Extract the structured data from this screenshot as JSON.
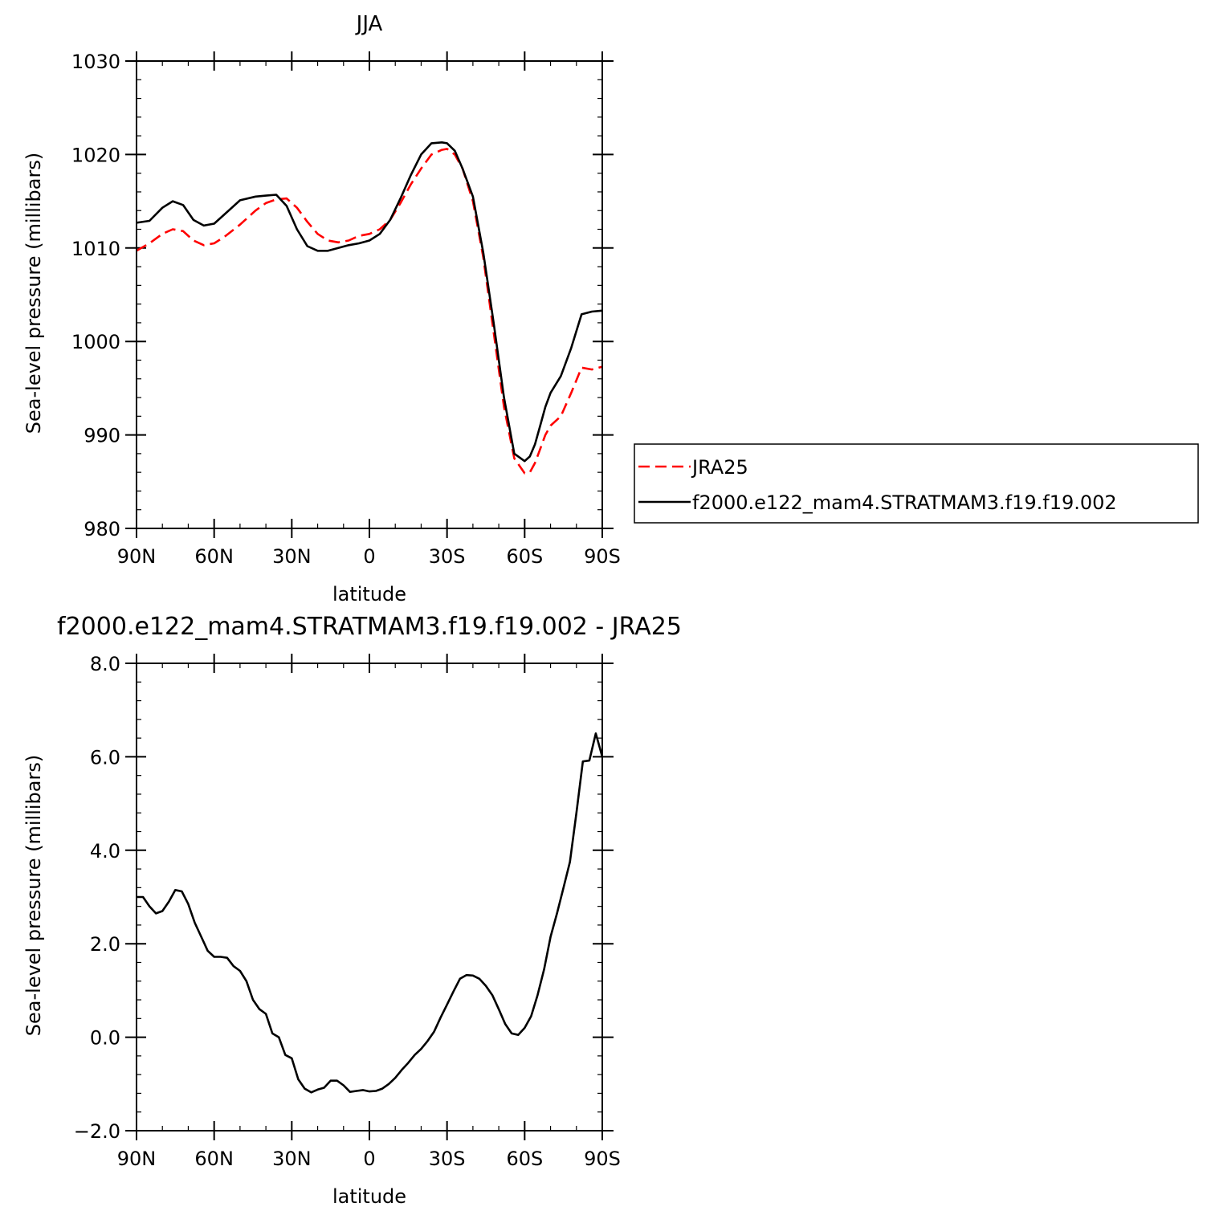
{
  "chart_data": [
    {
      "type": "line",
      "title": "JJA",
      "xlabel": "latitude",
      "ylabel": "Sea-level pressure (millibars)",
      "xlim": [
        -90,
        90
      ],
      "ylim": [
        980,
        1030
      ],
      "xticks": [
        -90,
        -60,
        -30,
        0,
        30,
        60,
        90
      ],
      "xtick_labels": [
        "90N",
        "60N",
        "30N",
        "0",
        "30S",
        "60S",
        "90S"
      ],
      "yticks": [
        980,
        990,
        1000,
        1010,
        1020,
        1030
      ],
      "ytick_labels": [
        "980",
        "990",
        "1000",
        "1010",
        "1020",
        "1030"
      ],
      "grid": false,
      "legend_position": "right",
      "series": [
        {
          "name": "JRA25",
          "color": "#ff0000",
          "dash": "dashed",
          "x": [
            -90,
            -85,
            -80,
            -76,
            -72,
            -68,
            -64,
            -60,
            -56,
            -50,
            -44,
            -40,
            -36,
            -32,
            -28,
            -24,
            -20,
            -16,
            -12,
            -8,
            -4,
            0,
            4,
            8,
            12,
            16,
            20,
            24,
            28,
            30,
            33,
            36,
            40,
            44,
            48,
            52,
            56,
            60,
            62,
            64,
            66,
            68,
            70,
            74,
            78,
            82,
            86,
            90
          ],
          "values": [
            1009.7,
            1010.5,
            1011.5,
            1012.0,
            1011.8,
            1010.8,
            1010.3,
            1010.5,
            1011.2,
            1012.5,
            1014.0,
            1014.8,
            1015.2,
            1015.3,
            1014.3,
            1012.8,
            1011.5,
            1010.8,
            1010.6,
            1010.8,
            1011.3,
            1011.5,
            1012.0,
            1013.0,
            1014.8,
            1016.8,
            1018.5,
            1020.0,
            1020.5,
            1020.6,
            1020.0,
            1018.5,
            1015.0,
            1009.0,
            1001.0,
            993.0,
            987.5,
            985.9,
            986.0,
            987.0,
            988.5,
            990.0,
            991.0,
            992.0,
            994.5,
            997.2,
            997.0,
            997.3
          ]
        },
        {
          "name": "f2000.e122_mam4.STRATMAM3.f19.f19.002",
          "color": "#000000",
          "dash": "solid",
          "x": [
            -90,
            -85,
            -80,
            -76,
            -72,
            -68,
            -64,
            -60,
            -56,
            -50,
            -44,
            -40,
            -36,
            -32,
            -28,
            -24,
            -20,
            -16,
            -12,
            -8,
            -4,
            0,
            4,
            8,
            12,
            16,
            20,
            24,
            28,
            30,
            33,
            36,
            40,
            44,
            48,
            52,
            56,
            60,
            62,
            64,
            66,
            68,
            70,
            74,
            78,
            82,
            86,
            90
          ],
          "values": [
            1012.7,
            1012.9,
            1014.3,
            1015.0,
            1014.6,
            1013.0,
            1012.4,
            1012.6,
            1013.6,
            1015.1,
            1015.5,
            1015.6,
            1015.7,
            1014.5,
            1012.0,
            1010.2,
            1009.7,
            1009.7,
            1010.0,
            1010.3,
            1010.5,
            1010.8,
            1011.5,
            1013.0,
            1015.3,
            1017.8,
            1020.0,
            1021.2,
            1021.3,
            1021.2,
            1020.4,
            1018.5,
            1015.5,
            1009.5,
            1002.0,
            994.0,
            988.0,
            987.2,
            987.7,
            989.0,
            991.0,
            993.0,
            994.5,
            996.3,
            999.3,
            1002.9,
            1003.2,
            1003.3
          ]
        }
      ]
    },
    {
      "type": "line",
      "title": "f2000.e122_mam4.STRATMAM3.f19.f19.002 - JRA25",
      "xlabel": "latitude",
      "ylabel": "Sea-level pressure (millibars)",
      "xlim": [
        -90,
        90
      ],
      "ylim": [
        -2.0,
        8.0
      ],
      "xticks": [
        -90,
        -60,
        -30,
        0,
        30,
        60,
        90
      ],
      "xtick_labels": [
        "90N",
        "60N",
        "30N",
        "0",
        "30S",
        "60S",
        "90S"
      ],
      "yticks": [
        -2.0,
        0.0,
        2.0,
        4.0,
        6.0,
        8.0
      ],
      "ytick_labels": [
        "−2.0",
        "0.0",
        "2.0",
        "4.0",
        "6.0",
        "8.0"
      ],
      "grid": false,
      "series": [
        {
          "color": "#000000",
          "dash": "solid",
          "x": [
            -90,
            -87.5,
            -85,
            -82.5,
            -80,
            -77.5,
            -75,
            -72.5,
            -70,
            -67.5,
            -65,
            -62.5,
            -60,
            -57.5,
            -55,
            -52.5,
            -50,
            -47.5,
            -45,
            -42.5,
            -40,
            -37.5,
            -35,
            -32.5,
            -30,
            -27.5,
            -25,
            -22.5,
            -20,
            -17.5,
            -15,
            -12.5,
            -10,
            -7.5,
            -5,
            -2.5,
            0,
            2.5,
            5,
            7.5,
            10,
            12.5,
            15,
            17.5,
            20,
            22.5,
            25,
            27.5,
            30,
            32.5,
            35,
            37.5,
            40,
            42.5,
            45,
            47.5,
            50,
            52.5,
            55,
            57.5,
            60,
            62.5,
            65,
            67.5,
            70,
            72.5,
            75,
            77.5,
            80,
            82.5,
            85,
            87.5,
            90
          ],
          "values": [
            3.0,
            3.0,
            2.8,
            2.65,
            2.7,
            2.9,
            3.15,
            3.12,
            2.85,
            2.45,
            2.15,
            1.85,
            1.72,
            1.72,
            1.7,
            1.52,
            1.42,
            1.2,
            0.8,
            0.6,
            0.5,
            0.08,
            0.0,
            -0.38,
            -0.45,
            -0.9,
            -1.1,
            -1.18,
            -1.12,
            -1.08,
            -0.93,
            -0.93,
            -1.03,
            -1.17,
            -1.15,
            -1.13,
            -1.16,
            -1.15,
            -1.1,
            -1.0,
            -0.87,
            -0.7,
            -0.55,
            -0.38,
            -0.25,
            -0.08,
            0.12,
            0.42,
            0.7,
            0.98,
            1.25,
            1.33,
            1.32,
            1.25,
            1.1,
            0.9,
            0.6,
            0.28,
            0.08,
            0.05,
            0.2,
            0.45,
            0.9,
            1.45,
            2.15,
            2.65,
            3.2,
            3.75,
            4.8,
            5.9,
            5.92,
            6.5,
            6.0
          ]
        }
      ]
    }
  ]
}
